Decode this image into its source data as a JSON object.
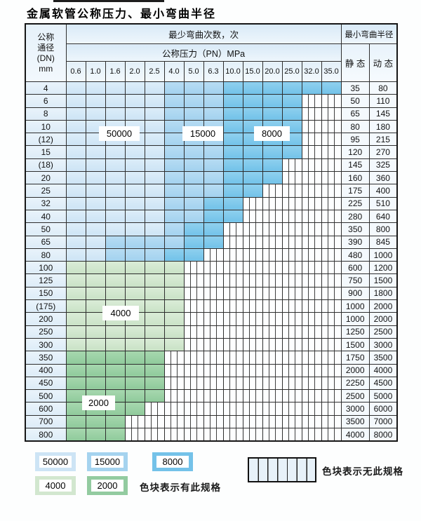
{
  "title": "金属软管公称压力、最小弯曲半径",
  "table": {
    "corner_header": [
      "公称",
      "通径",
      "(DN)",
      "mm"
    ],
    "bend_cycles_header": "最少弯曲次数，次",
    "pressure_header": "公称压力（PN）MPa",
    "radius_header": "最小弯曲半径",
    "static_header": "静 态",
    "dynamic_header": "动 态",
    "pressure_columns": [
      "0.6",
      "1.0",
      "1.6",
      "2.0",
      "2.5",
      "4.0",
      "5.0",
      "6.3",
      "10.0",
      "15.0",
      "20.0",
      "25.0",
      "32.0",
      "35.0"
    ],
    "cell_legend_key": {
      "L": "50000",
      "M": "15000",
      "D": "8000",
      "G": "4000",
      "E": "2000",
      "X": "no-spec"
    },
    "rows": [
      {
        "dn": "4",
        "cells": "LLLLLMMMDDDDDD",
        "static": "35",
        "dynamic": "80"
      },
      {
        "dn": "6",
        "cells": "LLLLLMMMDDDDXX",
        "static": "50",
        "dynamic": "110"
      },
      {
        "dn": "8",
        "cells": "LLLLLMMMDDDDXX",
        "static": "65",
        "dynamic": "145"
      },
      {
        "dn": "10",
        "cells": "LLLLLMMMDDDDXX",
        "static": "80",
        "dynamic": "180"
      },
      {
        "dn": "(12)",
        "cells": "LLLLLMMMDDDDXX",
        "static": "95",
        "dynamic": "215"
      },
      {
        "dn": "15",
        "cells": "LLLLLMMMDDDDXX",
        "static": "120",
        "dynamic": "270"
      },
      {
        "dn": "(18)",
        "cells": "LLLLLMMMDDDXXX",
        "static": "145",
        "dynamic": "325"
      },
      {
        "dn": "20",
        "cells": "LLLLLMMMDDDXXX",
        "static": "160",
        "dynamic": "360"
      },
      {
        "dn": "25",
        "cells": "LLLLLMMMDDXXXX",
        "static": "175",
        "dynamic": "400"
      },
      {
        "dn": "32",
        "cells": "LLLLLMMDDXXXXX",
        "static": "225",
        "dynamic": "510"
      },
      {
        "dn": "40",
        "cells": "LLLLLMMDDXXXXX",
        "static": "280",
        "dynamic": "640"
      },
      {
        "dn": "50",
        "cells": "LLLLLMDDXXXXXX",
        "static": "350",
        "dynamic": "800"
      },
      {
        "dn": "65",
        "cells": "LLMMMMDDXXXXXX",
        "static": "390",
        "dynamic": "845"
      },
      {
        "dn": "80",
        "cells": "LLMMMDDXXXXXXX",
        "static": "480",
        "dynamic": "1000"
      },
      {
        "dn": "100",
        "cells": "GGGGGGXXXXXXXX",
        "static": "600",
        "dynamic": "1200"
      },
      {
        "dn": "125",
        "cells": "GGGGGGXXXXXXXX",
        "static": "750",
        "dynamic": "1500"
      },
      {
        "dn": "150",
        "cells": "GGGGGGXXXXXXXX",
        "static": "900",
        "dynamic": "1800"
      },
      {
        "dn": "(175)",
        "cells": "GGGGGGXXXXXXXX",
        "static": "1000",
        "dynamic": "2000"
      },
      {
        "dn": "200",
        "cells": "GGGGGGXXXXXXXX",
        "static": "1000",
        "dynamic": "2000"
      },
      {
        "dn": "250",
        "cells": "GGGGGGXXXXXXXX",
        "static": "1250",
        "dynamic": "2500"
      },
      {
        "dn": "300",
        "cells": "GGGGGGXXXXXXXX",
        "static": "1500",
        "dynamic": "3000"
      },
      {
        "dn": "350",
        "cells": "EEEEEXXXXXXXXX",
        "static": "1750",
        "dynamic": "3500"
      },
      {
        "dn": "400",
        "cells": "EEEEEXXXXXXXXX",
        "static": "2000",
        "dynamic": "4000"
      },
      {
        "dn": "450",
        "cells": "EEEEEXXXXXXXXX",
        "static": "2250",
        "dynamic": "4500"
      },
      {
        "dn": "500",
        "cells": "EEEEEXXXXXXXXX",
        "static": "2500",
        "dynamic": "5000"
      },
      {
        "dn": "600",
        "cells": "EEEEXXXXXXXXXX",
        "static": "3000",
        "dynamic": "6000"
      },
      {
        "dn": "700",
        "cells": "EEEXXXXXXXXXXX",
        "static": "3500",
        "dynamic": "7000"
      },
      {
        "dn": "800",
        "cells": "EEEXXXXXXXXXXX",
        "static": "4000",
        "dynamic": "8000"
      }
    ]
  },
  "overlays": {
    "in_table_labels": [
      "50000",
      "15000",
      "8000",
      "4000",
      "2000"
    ]
  },
  "legend": {
    "items": [
      {
        "label": "50000",
        "color": "#cde4f5"
      },
      {
        "label": "15000",
        "color": "#a5d3ef"
      },
      {
        "label": "8000",
        "color": "#74c2e9"
      },
      {
        "label": "4000",
        "color": "#d2e7cf"
      },
      {
        "label": "2000",
        "color": "#93cba0"
      }
    ],
    "has_spec_text": "色块表示有此规格",
    "no_spec_text": "色块表示无此规格"
  },
  "colors": {
    "cycles_50000": "#cde4f5",
    "cycles_15000": "#a5d3ef",
    "cycles_8000": "#74c2e9",
    "cycles_4000": "#d2e7cf",
    "cycles_2000": "#93cba0",
    "no_spec_fill": "#fdfeff",
    "grid_line": "#2e2e2e"
  }
}
